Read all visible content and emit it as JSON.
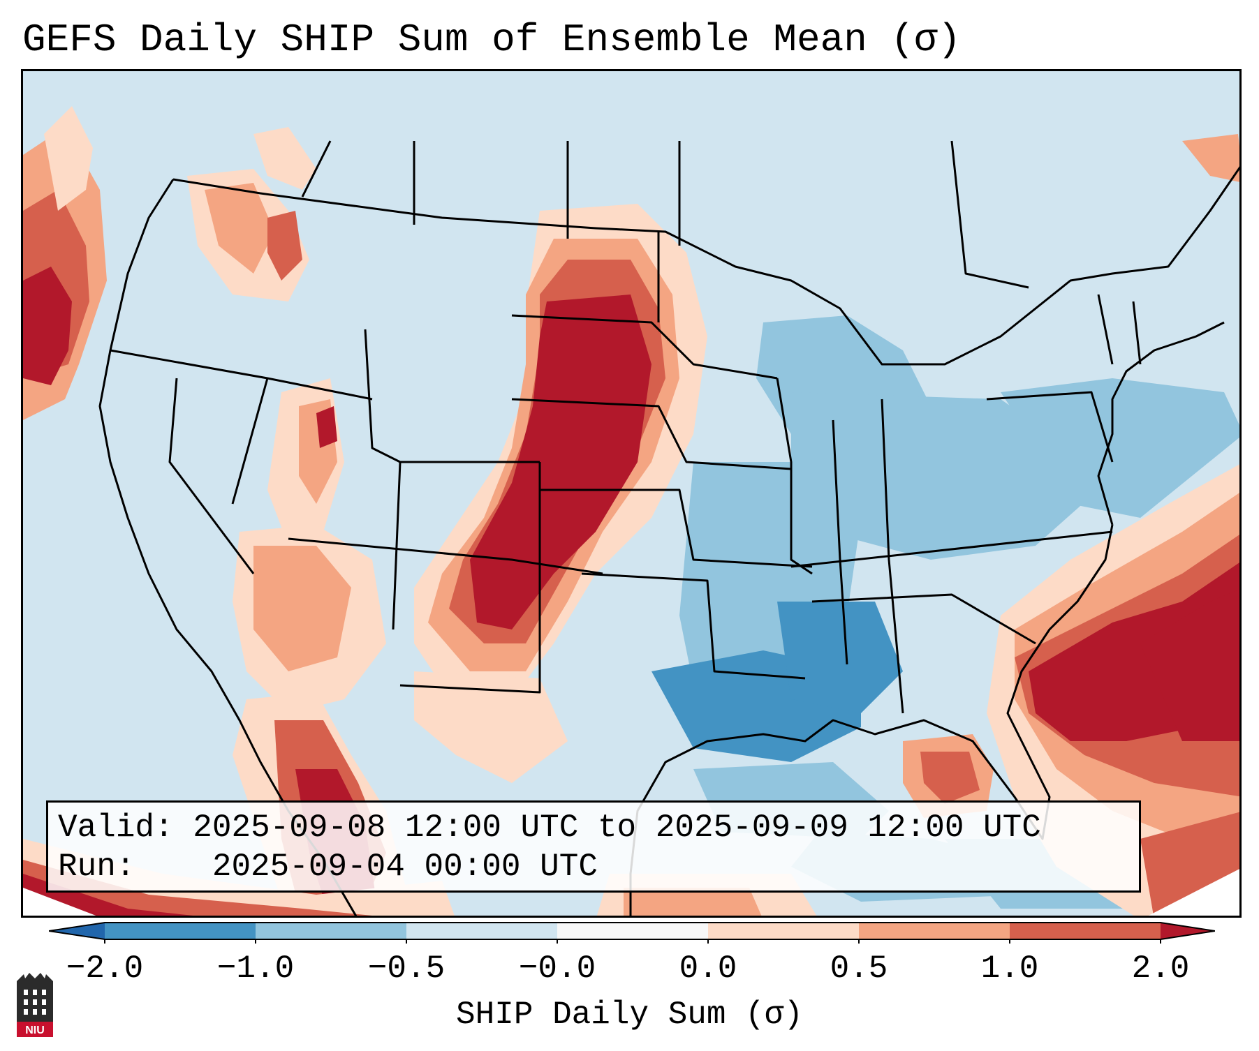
{
  "title": "GEFS Daily SHIP Sum of Ensemble Mean (σ)",
  "info": {
    "valid_label": "Valid:",
    "valid_value": "2025-09-08 12:00 UTC to 2025-09-09 12:00 UTC",
    "run_label": "Run:",
    "run_value": "2025-09-04 00:00 UTC"
  },
  "colorbar": {
    "label": "SHIP Daily Sum (σ)",
    "ticks": [
      "−2.0",
      "−1.0",
      "−0.5",
      "−0.0",
      "0.0",
      "0.5",
      "1.0",
      "2.0"
    ],
    "colors": [
      "#4393c3",
      "#92c5de",
      "#d1e5f0",
      "#f7f7f7",
      "#fddbc7",
      "#f4a582",
      "#d6604d",
      "#b2182b"
    ],
    "extend_min_color": "#2166ac",
    "extend_max_color": "#b2182b"
  },
  "logo": {
    "text": "NIU"
  }
}
